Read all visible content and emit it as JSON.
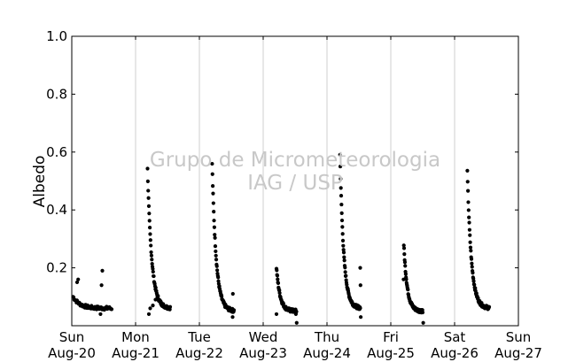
{
  "chart_data": {
    "type": "scatter",
    "title": "",
    "xlabel": "",
    "ylabel": "Albedo",
    "ylim": [
      0.0,
      1.0
    ],
    "xlim": [
      "2012-08-20",
      "2012-08-27"
    ],
    "y_ticks": [
      "1.0",
      "0.8",
      "0.6",
      "0.4",
      "0.2"
    ],
    "x_ticks": [
      {
        "day": "Sun",
        "date": "Aug-20"
      },
      {
        "day": "Mon",
        "date": "Aug-21"
      },
      {
        "day": "Tue",
        "date": "Aug-22"
      },
      {
        "day": "Wed",
        "date": "Aug-23"
      },
      {
        "day": "Thu",
        "date": "Aug-24"
      },
      {
        "day": "Fri",
        "date": "Aug-25"
      },
      {
        "day": "Sat",
        "date": "Aug-26"
      },
      {
        "day": "Sun",
        "date": "Aug-27"
      }
    ],
    "grid": "vertical",
    "marker_color": "#000000",
    "watermark": [
      "Grupo de Micrometeorologia",
      "IAG / USP"
    ],
    "days": [
      {
        "date": "Aug-20",
        "start_hour": 0.5,
        "end_hour": 15.0,
        "peak": 0.1,
        "floor": 0.06,
        "extra": [
          [
            2.4,
            0.16
          ],
          [
            2.0,
            0.15
          ],
          [
            11.5,
            0.19
          ],
          [
            11.2,
            0.14
          ],
          [
            10.8,
            0.04
          ]
        ]
      },
      {
        "date": "Aug-21",
        "start_hour": 4.5,
        "end_hour": 13.0,
        "peak": 0.54,
        "floor": 0.06,
        "extra": [
          [
            5.0,
            0.04
          ],
          [
            5.5,
            0.06
          ],
          [
            6.5,
            0.07
          ],
          [
            7.5,
            0.09
          ]
        ]
      },
      {
        "date": "Aug-22",
        "start_hour": 4.8,
        "end_hour": 13.0,
        "peak": 0.56,
        "floor": 0.05,
        "extra": [
          [
            12.5,
            0.03
          ],
          [
            12.6,
            0.11
          ]
        ]
      },
      {
        "date": "Aug-23",
        "start_hour": 5.0,
        "end_hour": 12.5,
        "peak": 0.2,
        "floor": 0.05,
        "extra": [
          [
            5.0,
            0.04
          ],
          [
            12.6,
            0.01
          ],
          [
            12.3,
            0.04
          ]
        ]
      },
      {
        "date": "Aug-24",
        "start_hour": 4.9,
        "end_hour": 12.5,
        "peak": 0.59,
        "floor": 0.06,
        "extra": [
          [
            12.5,
            0.2
          ],
          [
            12.6,
            0.14
          ],
          [
            12.7,
            0.03
          ]
        ]
      },
      {
        "date": "Aug-25",
        "start_hour": 4.9,
        "end_hour": 12.0,
        "peak": 0.28,
        "floor": 0.05,
        "extra": [
          [
            4.8,
            0.16
          ],
          [
            12.2,
            0.01
          ]
        ]
      },
      {
        "date": "Aug-26",
        "start_hour": 4.8,
        "end_hour": 13.0,
        "peak": 0.53,
        "floor": 0.06,
        "extra": []
      }
    ]
  }
}
